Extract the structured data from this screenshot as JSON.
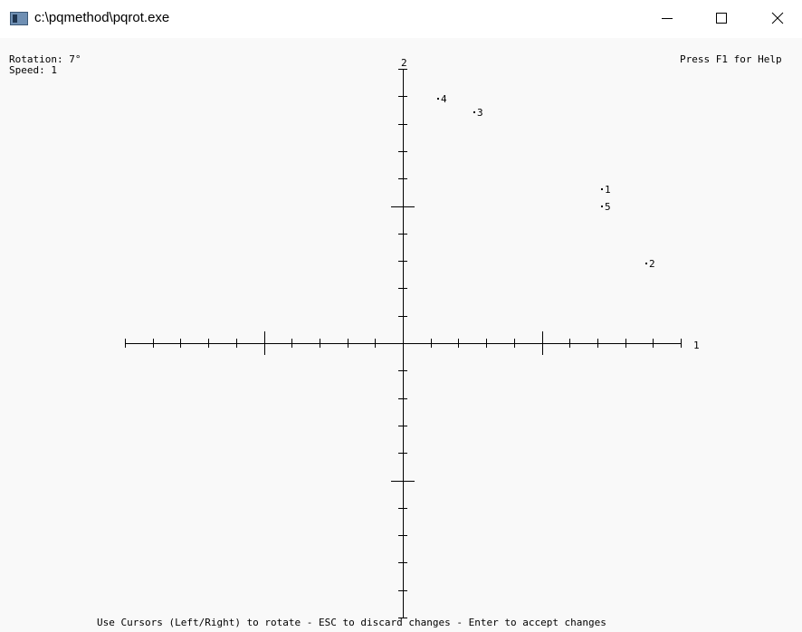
{
  "window": {
    "title": "c:\\pqmethod\\pqrot.exe",
    "icon": "console-app-icon",
    "controls": [
      "minimize",
      "maximize",
      "close"
    ]
  },
  "status": {
    "rotation": "Rotation: 7°",
    "speed": "Speed: 1",
    "help": "Press F1 for Help"
  },
  "instructions": "Use Cursors (Left/Right) to rotate - ESC to discard changes - Enter to accept changes",
  "axes": {
    "x_label": "1",
    "y_label": "2"
  },
  "chart_data": {
    "type": "scatter",
    "xlabel": "1",
    "ylabel": "2",
    "xlim": [
      -1,
      1
    ],
    "ylim": [
      -1,
      1
    ],
    "x_major_ticks": [
      -1,
      -0.5,
      0,
      0.5,
      1
    ],
    "y_major_ticks": [
      -1,
      -0.5,
      0,
      0.5,
      1
    ],
    "minor_tick_step": 0.1,
    "grid": false,
    "points": [
      {
        "label": "1",
        "x": 0.73,
        "y": 0.56
      },
      {
        "label": "2",
        "x": 0.89,
        "y": 0.29
      },
      {
        "label": "3",
        "x": 0.27,
        "y": 0.84
      },
      {
        "label": "4",
        "x": 0.14,
        "y": 0.89
      },
      {
        "label": "5",
        "x": 0.73,
        "y": 0.5
      }
    ]
  }
}
